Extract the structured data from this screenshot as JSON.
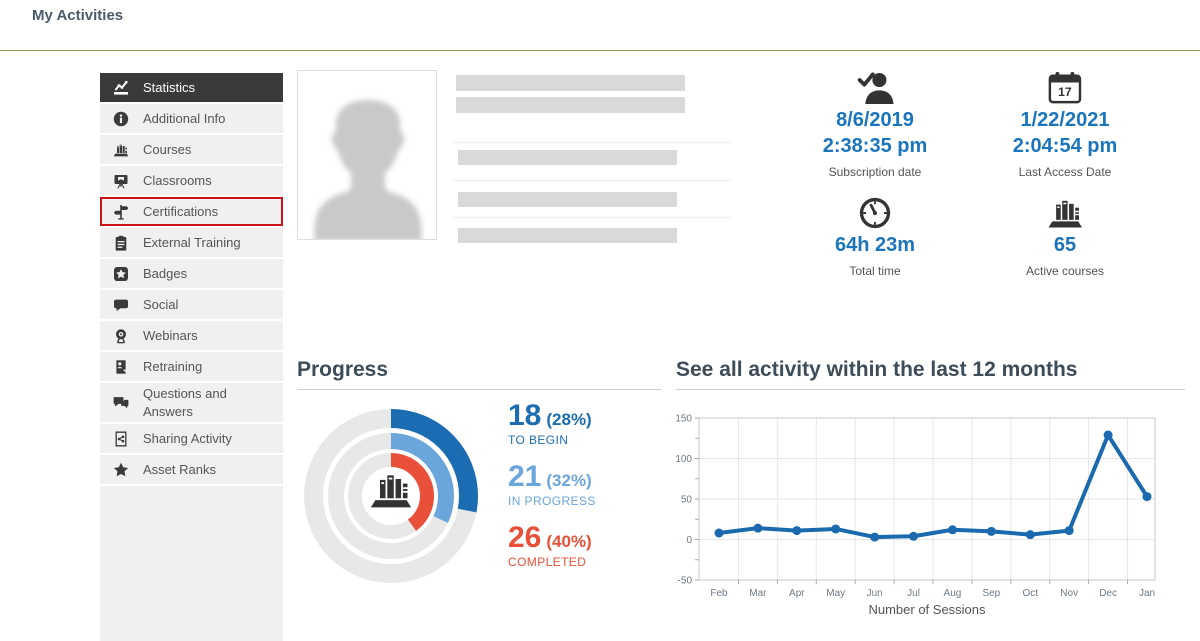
{
  "page": {
    "title": "My Activities"
  },
  "sidebar": {
    "items": [
      {
        "label": "Statistics",
        "icon": "stats-chart",
        "active": true
      },
      {
        "label": "Additional Info",
        "icon": "info-circle"
      },
      {
        "label": "Courses",
        "icon": "books"
      },
      {
        "label": "Classrooms",
        "icon": "classroom-board"
      },
      {
        "label": "Certifications",
        "icon": "signpost",
        "highlighted": true
      },
      {
        "label": "External Training",
        "icon": "clipboard"
      },
      {
        "label": "Badges",
        "icon": "badge-star"
      },
      {
        "label": "Social",
        "icon": "speech-bubble"
      },
      {
        "label": "Webinars",
        "icon": "webcam"
      },
      {
        "label": "Retraining",
        "icon": "retraining-doc"
      },
      {
        "label": "Questions and Answers",
        "icon": "qa-bubbles"
      },
      {
        "label": "Sharing Activity",
        "icon": "sharing-doc"
      },
      {
        "label": "Asset Ranks",
        "icon": "star"
      }
    ]
  },
  "profile": {
    "avatar_icon": "person-silhouette"
  },
  "stats": [
    {
      "icon": "person-check",
      "lines": [
        "8/6/2019",
        "2:38:35 pm"
      ],
      "label": "Subscription date"
    },
    {
      "icon": "calendar",
      "icon_text": "17",
      "lines": [
        "1/22/2021",
        "2:04:54 pm"
      ],
      "label": "Last Access Date"
    },
    {
      "icon": "clock",
      "lines": [
        "64h 23m"
      ],
      "label": "Total time"
    },
    {
      "icon": "books",
      "lines": [
        "65"
      ],
      "label": "Active courses"
    }
  ],
  "progress": {
    "title": "Progress"
  },
  "activity": {
    "title": "See all activity within the last 12 months"
  },
  "chart_data": [
    {
      "type": "donut",
      "title": "Progress",
      "center_icon": "books",
      "track_color": "#e8e8e8",
      "series": [
        {
          "name": "TO BEGIN",
          "value": 18,
          "pct": 28,
          "color": "#1b6cb1"
        },
        {
          "name": "IN PROGRESS",
          "value": 21,
          "pct": 32,
          "color": "#6aa5dc"
        },
        {
          "name": "COMPLETED",
          "value": 26,
          "pct": 40,
          "color": "#e8503a"
        }
      ]
    },
    {
      "type": "line",
      "title": "See all activity within the last 12 months",
      "xlabel": "Number of Sessions",
      "x": [
        "Feb",
        "Mar",
        "Apr",
        "May",
        "Jun",
        "Jul",
        "Aug",
        "Sep",
        "Oct",
        "Nov",
        "Dec",
        "Jan"
      ],
      "values": [
        8,
        14,
        11,
        13,
        3,
        4,
        12,
        10,
        6,
        11,
        129,
        53
      ],
      "ylim": [
        -50,
        150
      ],
      "yticks": [
        150,
        100,
        50,
        0,
        -50
      ],
      "line_color": "#1b69ae",
      "grid": true,
      "legend_position": "none"
    }
  ],
  "colors": {
    "accent_blue": "#1b75bc",
    "olive_rule": "#94a44c",
    "highlight_red": "#c81414",
    "active_item_bg": "#3a3a3a"
  }
}
